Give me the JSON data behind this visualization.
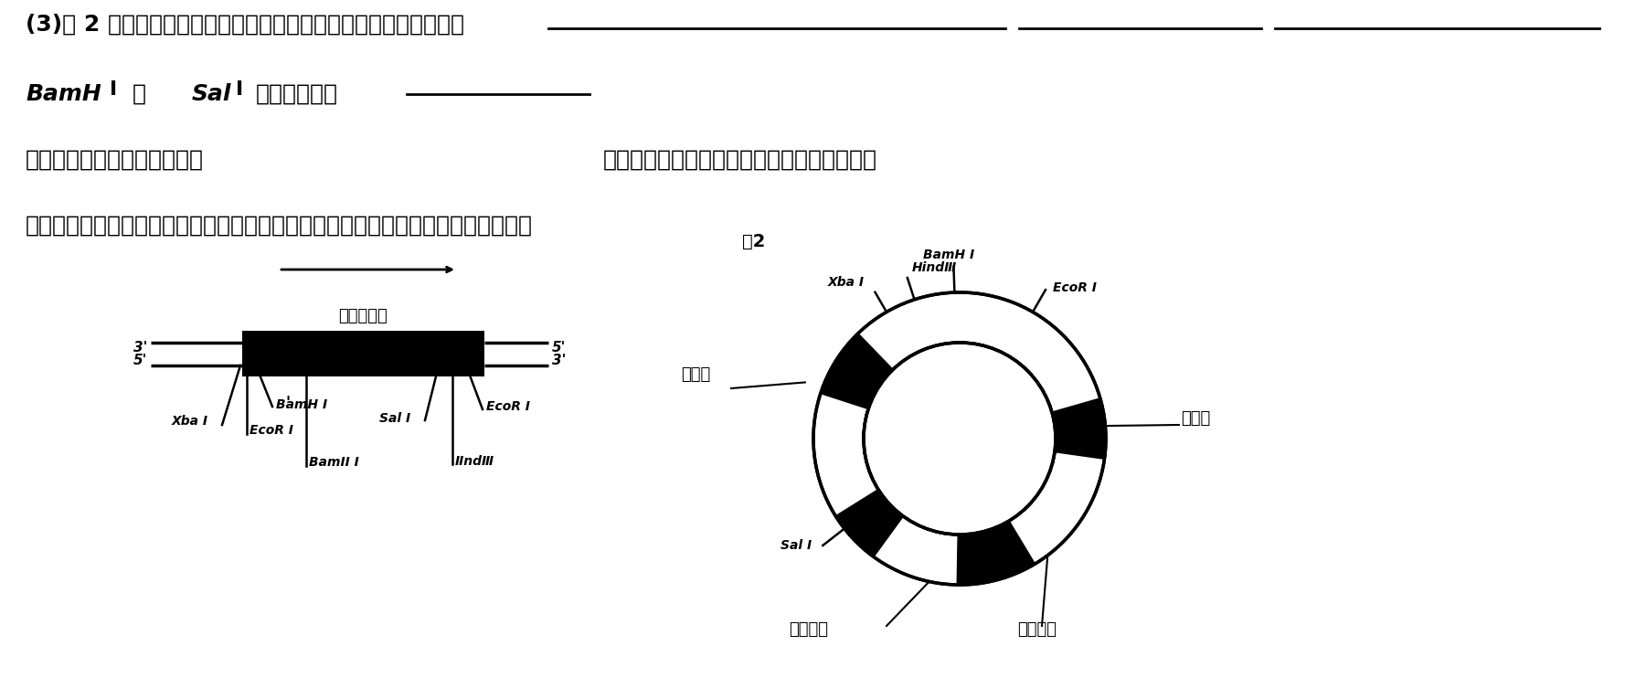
{
  "bg_color": "#ffffff",
  "title": "(3)图 2 为目的基因、相关质粒及其上限制酶酶切位点的分布情况．",
  "fig_label": "图2",
  "promoter_label": "自动子",
  "terminator_label": "终止子",
  "marker_label": "标记基因",
  "ori_label": "复制原点",
  "gene_label": "胰岛素基因",
  "bottom1": "获取目的基因后．若要在成功构建重组表达载体的同时确保目的基因插入载体中",
  "bottom2a": "的方向正确，最好选用限制酶",
  "bottom2b": "切割目的基因和载体．选用的两种酶中不包含",
  "bottom3a": "和",
  "bottom3b": "，原因分别为"
}
